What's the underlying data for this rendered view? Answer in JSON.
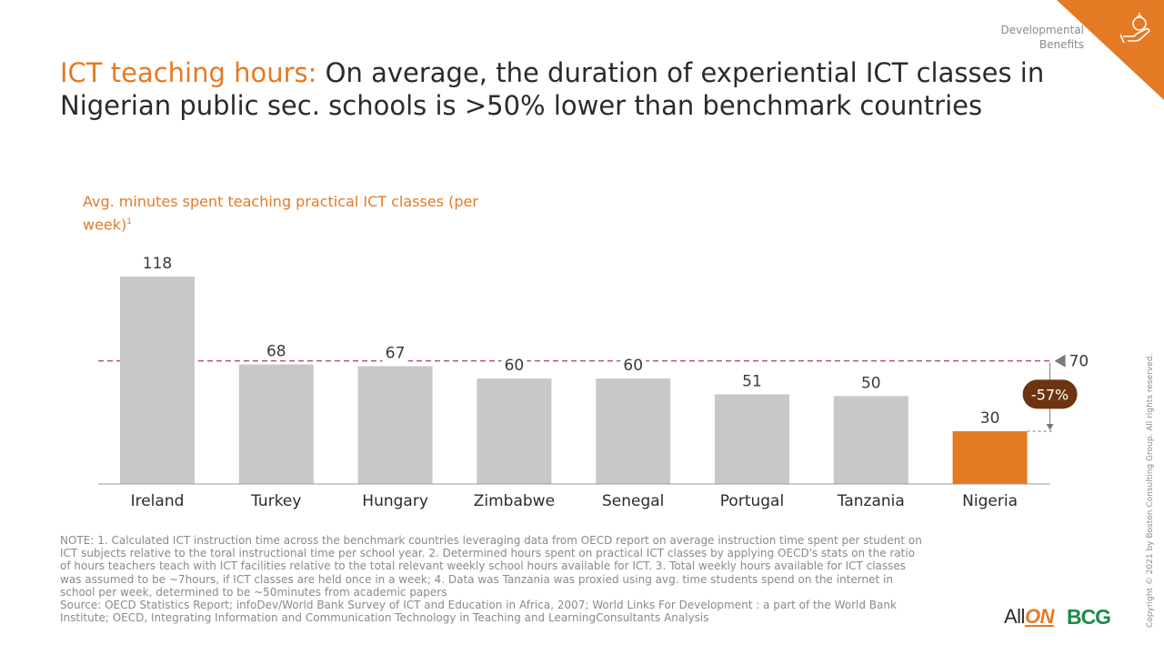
{
  "header": {
    "section_label": "Developmental Benefits",
    "title_accent": "ICT teaching hours:",
    "title_rest": " On average, the duration of experiential ICT classes in Nigerian public sec. schools is >50% lower than benchmark countries"
  },
  "chart_data": {
    "type": "bar",
    "ylabel": "Avg. minutes spent teaching practical ICT classes (per week)",
    "ylabel_superscript": "1",
    "categories": [
      "Ireland",
      "Turkey",
      "Hungary",
      "Zimbabwe",
      "Senegal",
      "Portugal",
      "Tanzania",
      "Nigeria"
    ],
    "values": [
      118,
      68,
      67,
      60,
      60,
      51,
      50,
      30
    ],
    "highlight_category": "Nigeria",
    "colors": {
      "bar": "#c8c8c8",
      "highlight": "#e47a23",
      "reference": "#b8336a",
      "callout": "#6e3412"
    },
    "reference_line": {
      "value": 70,
      "label": "70"
    },
    "difference_callout": "-57%",
    "ylim": [
      0,
      120
    ],
    "grid": false,
    "legend": "none"
  },
  "footnotes": {
    "note": "NOTE: 1. Calculated ICT instruction time across the benchmark countries leveraging data from OECD report on average instruction time spent per student on ICT subjects relative to the toral instructional time per school year. 2. Determined hours spent on practical ICT classes by applying OECD's stats on the ratio of hours teachers teach with ICT facilities relative to the total relevant weekly school hours available for ICT. 3. Total weekly hours available for ICT classes was assumed to be ~7hours, if ICT classes are held once in a week; 4. Data was Tanzania was proxied using avg. time students spend on the internet in school per week, determined to be ~50minutes from academic papers",
    "source": "Source: OECD Statistics Report; infoDev/World Bank Survey of ICT and Education in Africa, 2007; World Links For Development  : a part of the World Bank Institute; OECD, Integrating Information and Communication Technology in Teaching and LearningConsultants Analysis"
  },
  "copyright": "Copyright © 2021 by Boston Consulting Group. All rights reserved.",
  "logos": {
    "allon_prefix": "All",
    "allon_suffix": "ON",
    "bcg": "BCG"
  }
}
